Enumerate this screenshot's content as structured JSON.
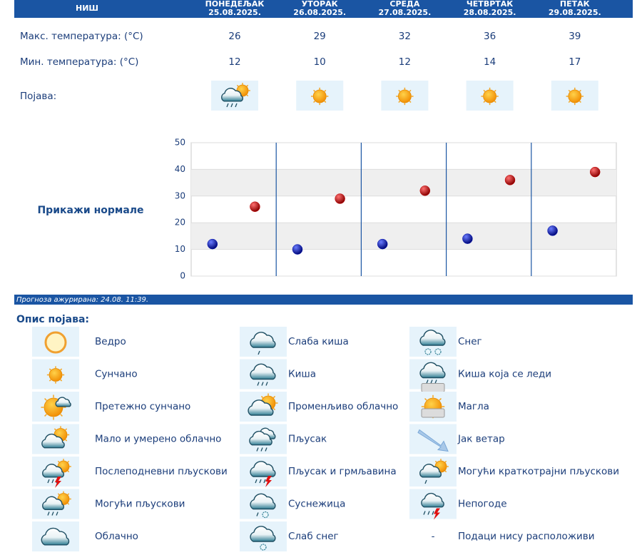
{
  "header": {
    "city": "НИШ",
    "days": [
      {
        "name": "ПОНЕДЕЉАК",
        "date": "25.08.2025."
      },
      {
        "name": "УТОРАК",
        "date": "26.08.2025."
      },
      {
        "name": "СРЕДА",
        "date": "27.08.2025."
      },
      {
        "name": "ЧЕТВРТАК",
        "date": "28.08.2025."
      },
      {
        "name": "ПЕТАК",
        "date": "29.08.2025."
      }
    ]
  },
  "rows": {
    "max": {
      "label": "Макс. температура: (°C)",
      "values": [
        26,
        29,
        32,
        36,
        39
      ],
      "color": "#c00000"
    },
    "min": {
      "label": "Мин. температура: (°C)",
      "values": [
        12,
        10,
        12,
        14,
        17
      ],
      "color": "#0010b0"
    },
    "phenomenon": {
      "label": "Појава:"
    }
  },
  "chart": {
    "type": "scatter",
    "ylim": [
      0,
      50
    ],
    "yticks": [
      0,
      10,
      20,
      30,
      40,
      50
    ],
    "grid_bands": true
  },
  "normals_link": "Прикажи нормале",
  "updated": "Прогноза ажурирана:  24.08. 11:39.",
  "legend": {
    "title": "Опис појава:",
    "items": [
      {
        "label": "Ведро"
      },
      {
        "label": "Сунчано"
      },
      {
        "label": "Претежно сунчано"
      },
      {
        "label": "Мало и умерено облачно"
      },
      {
        "label": "Послеподневни пљускови"
      },
      {
        "label": "Могући пљускови"
      },
      {
        "label": "Облачно"
      },
      {
        "label": "Слаба киша"
      },
      {
        "label": "Киша"
      },
      {
        "label": "Променљиво облачно"
      },
      {
        "label": "Пљусак"
      },
      {
        "label": "Пљусак и грмљавина"
      },
      {
        "label": "Суснежица"
      },
      {
        "label": "Слаб снег"
      },
      {
        "label": "Снег"
      },
      {
        "label": "Киша која се леди"
      },
      {
        "label": "Магла"
      },
      {
        "label": "Јак ветар"
      },
      {
        "label": "Могући краткотрајни пљускови"
      },
      {
        "label": "Непогоде"
      },
      {
        "symbol": "-",
        "label": "Подаци нису расположиви"
      }
    ]
  }
}
